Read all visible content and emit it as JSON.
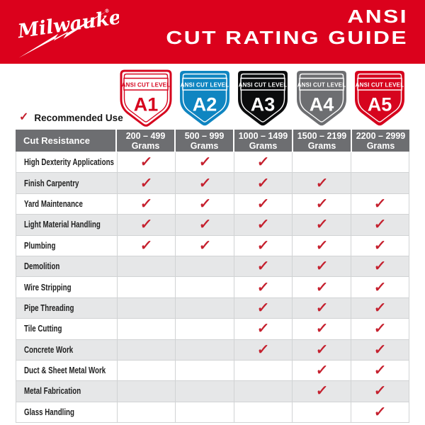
{
  "brand": {
    "logo_text": "Milwaukee",
    "registered_mark": "®"
  },
  "banner": {
    "title_line1": "ANSI",
    "title_line2": "CUT RATING GUIDE",
    "background": "#DB011C",
    "text_color": "#FFFFFF"
  },
  "legend": {
    "check_glyph": "✓",
    "label": "Recommended Use",
    "check_color": "#C5202E"
  },
  "levels": [
    {
      "name": "A1",
      "banner_text": "ANSI CUT LEVEL",
      "fill": "#FFFFFF",
      "accent": "#D6041E",
      "outer_stroke": "#D6041E"
    },
    {
      "name": "A2",
      "banner_text": "ANSI CUT LEVEL",
      "fill": "#0F85C1",
      "accent": "#FFFFFF",
      "outer_stroke": "none"
    },
    {
      "name": "A3",
      "banner_text": "ANSI CUT LEVEL",
      "fill": "#0B0C0D",
      "accent": "#FFFFFF",
      "outer_stroke": "none"
    },
    {
      "name": "A4",
      "banner_text": "ANSI CUT LEVEL",
      "fill": "#6D6E71",
      "accent": "#FFFFFF",
      "outer_stroke": "none"
    },
    {
      "name": "A5",
      "banner_text": "ANSI CUT LEVEL",
      "fill": "#D6041E",
      "accent": "#FFFFFF",
      "outer_stroke": "none"
    }
  ],
  "chart_data": {
    "type": "table",
    "title": "ANSI CUT RATING GUIDE",
    "row_header": "Cut Resistance",
    "columns": [
      {
        "level": "A1",
        "range": "200 – 499",
        "unit": "Grams"
      },
      {
        "level": "A2",
        "range": "500 – 999",
        "unit": "Grams"
      },
      {
        "level": "A3",
        "range": "1000 – 1499",
        "unit": "Grams"
      },
      {
        "level": "A4",
        "range": "1500 – 2199",
        "unit": "Grams"
      },
      {
        "level": "A5",
        "range": "2200 – 2999",
        "unit": "Grams"
      }
    ],
    "rows": [
      {
        "use": "High Dexterity Applications",
        "checks": [
          1,
          1,
          1,
          0,
          0
        ]
      },
      {
        "use": "Finish Carpentry",
        "checks": [
          1,
          1,
          1,
          1,
          0
        ]
      },
      {
        "use": "Yard Maintenance",
        "checks": [
          1,
          1,
          1,
          1,
          1
        ]
      },
      {
        "use": "Light Material Handling",
        "checks": [
          1,
          1,
          1,
          1,
          1
        ]
      },
      {
        "use": "Plumbing",
        "checks": [
          1,
          1,
          1,
          1,
          1
        ]
      },
      {
        "use": "Demolition",
        "checks": [
          0,
          0,
          1,
          1,
          1
        ]
      },
      {
        "use": "Wire Stripping",
        "checks": [
          0,
          0,
          1,
          1,
          1
        ]
      },
      {
        "use": "Pipe Threading",
        "checks": [
          0,
          0,
          1,
          1,
          1
        ]
      },
      {
        "use": "Tile Cutting",
        "checks": [
          0,
          0,
          1,
          1,
          1
        ]
      },
      {
        "use": "Concrete Work",
        "checks": [
          0,
          0,
          1,
          1,
          1
        ]
      },
      {
        "use": "Duct & Sheet Metal Work",
        "checks": [
          0,
          0,
          0,
          1,
          1
        ]
      },
      {
        "use": "Metal Fabrication",
        "checks": [
          0,
          0,
          0,
          1,
          1
        ]
      },
      {
        "use": "Glass Handling",
        "checks": [
          0,
          0,
          0,
          0,
          1
        ]
      }
    ]
  },
  "colors": {
    "header_gray": "#6D6E71",
    "row_alt": "#E6E7E8",
    "grid_line": "#D1D3D4",
    "label_text": "#1F1F1F"
  }
}
